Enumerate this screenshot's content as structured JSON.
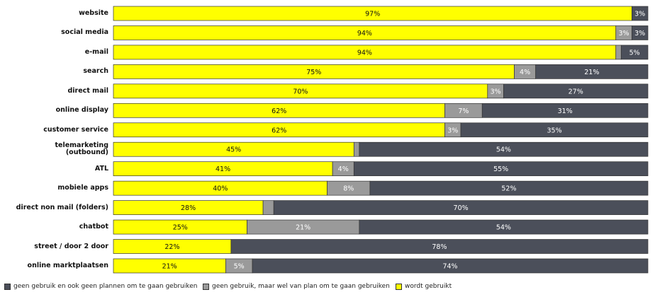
{
  "chart_data": {
    "type": "stacked-bar-horizontal",
    "categories": [
      "website",
      "social media",
      "e-mail",
      "search",
      "direct mail",
      "online display",
      "customer service",
      "telemarketing\n(outbound)",
      "ATL",
      "mobiele apps",
      "direct non mail (folders)",
      "chatbot",
      "street / door 2 door",
      "online marktplaatsen"
    ],
    "xlim": [
      0,
      100
    ],
    "series": [
      {
        "name": "wordt gebruikt",
        "color": "#ffff00",
        "label_color": "#111111",
        "values": [
          97,
          94,
          94,
          75,
          70,
          62,
          62,
          45,
          41,
          40,
          28,
          25,
          22,
          21
        ],
        "value_labels": [
          "97%",
          "94%",
          "94%",
          "75%",
          "70%",
          "62%",
          "62%",
          "45%",
          "41%",
          "40%",
          "28%",
          "25%",
          "22%",
          "21%"
        ]
      },
      {
        "name": "geen gebruik, maar wel van plan om te gaan gebruiken",
        "color": "#9a9a9a",
        "label_color": "#ffffff",
        "values": [
          0,
          3,
          1,
          4,
          3,
          7,
          3,
          1,
          4,
          8,
          2,
          21,
          0,
          5
        ],
        "value_labels": [
          null,
          "3%",
          null,
          "4%",
          "3%",
          "7%",
          "3%",
          null,
          "4%",
          "8%",
          null,
          "21%",
          null,
          "5%"
        ]
      },
      {
        "name": "geen gebruik en ook geen plannen om te gaan gebruiken",
        "color": "#4b4f5a",
        "label_color": "#ffffff",
        "values": [
          3,
          3,
          5,
          21,
          27,
          31,
          35,
          54,
          55,
          52,
          70,
          54,
          78,
          74
        ],
        "value_labels": [
          "3%",
          "3%",
          "5%",
          "21%",
          "27%",
          "31%",
          "35%",
          "54%",
          "55%",
          "52%",
          "70%",
          "54%",
          "78%",
          "74%"
        ]
      }
    ]
  }
}
